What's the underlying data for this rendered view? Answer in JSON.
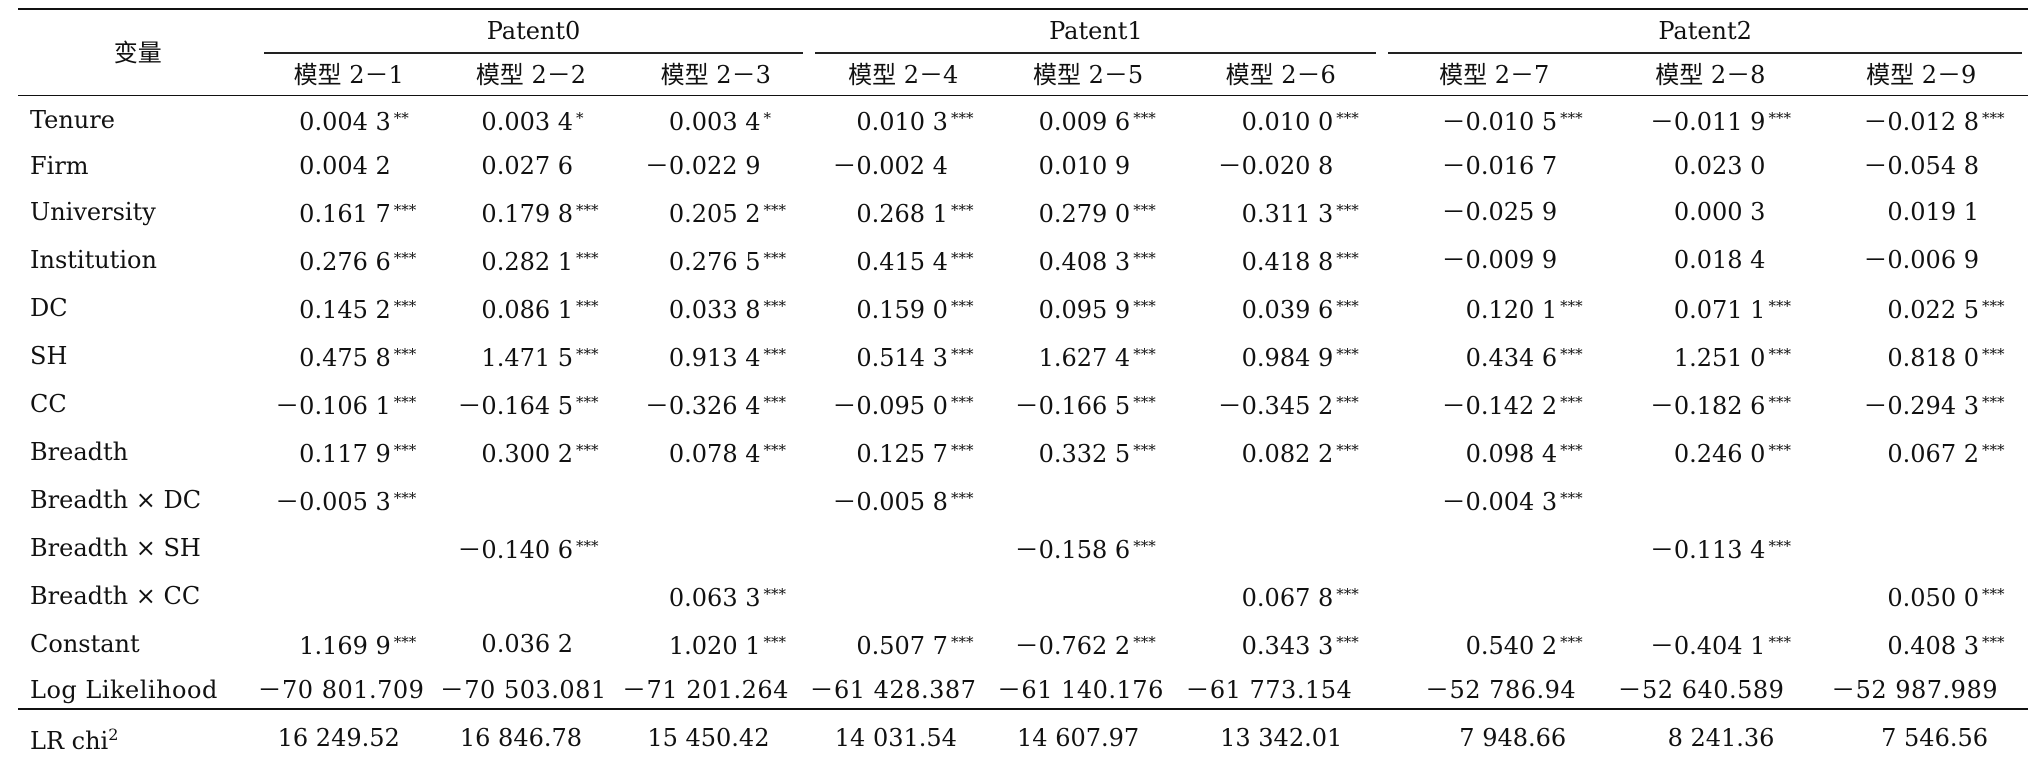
{
  "table": {
    "var_header": "变量",
    "groups": [
      "Patent0",
      "Patent1",
      "Patent2"
    ],
    "models": [
      "模型 2－1",
      "模型 2－2",
      "模型 2－3",
      "模型 2－4",
      "模型 2－5",
      "模型 2－6",
      "模型 2－7",
      "模型 2－8",
      "模型 2－9"
    ],
    "rows": [
      {
        "label": "Tenure",
        "cells": [
          [
            "0.004 3",
            "**"
          ],
          [
            "0.003 4",
            "*"
          ],
          [
            "0.003 4",
            "*"
          ],
          [
            "0.010 3",
            "***"
          ],
          [
            "0.009 6",
            "***"
          ],
          [
            "0.010 0",
            "***"
          ],
          [
            "－0.010 5",
            "***"
          ],
          [
            "－0.011 9",
            "***"
          ],
          [
            "－0.012 8",
            "***"
          ]
        ]
      },
      {
        "label": "Firm",
        "cells": [
          [
            "0.004 2",
            ""
          ],
          [
            "0.027 6",
            ""
          ],
          [
            "－0.022 9",
            ""
          ],
          [
            "－0.002 4",
            ""
          ],
          [
            "0.010 9",
            ""
          ],
          [
            "－0.020 8",
            ""
          ],
          [
            "－0.016 7",
            ""
          ],
          [
            "0.023 0",
            ""
          ],
          [
            "－0.054 8",
            ""
          ]
        ]
      },
      {
        "label": "University",
        "cells": [
          [
            "0.161 7",
            "***"
          ],
          [
            "0.179 8",
            "***"
          ],
          [
            "0.205 2",
            "***"
          ],
          [
            "0.268 1",
            "***"
          ],
          [
            "0.279 0",
            "***"
          ],
          [
            "0.311 3",
            "***"
          ],
          [
            "－0.025 9",
            ""
          ],
          [
            "0.000 3",
            ""
          ],
          [
            "0.019 1",
            ""
          ]
        ]
      },
      {
        "label": "Institution",
        "cells": [
          [
            "0.276 6",
            "***"
          ],
          [
            "0.282 1",
            "***"
          ],
          [
            "0.276 5",
            "***"
          ],
          [
            "0.415 4",
            "***"
          ],
          [
            "0.408 3",
            "***"
          ],
          [
            "0.418 8",
            "***"
          ],
          [
            "－0.009 9",
            ""
          ],
          [
            "0.018 4",
            ""
          ],
          [
            "－0.006 9",
            ""
          ]
        ]
      },
      {
        "label": "DC",
        "cells": [
          [
            "0.145 2",
            "***"
          ],
          [
            "0.086 1",
            "***"
          ],
          [
            "0.033 8",
            "***"
          ],
          [
            "0.159 0",
            "***"
          ],
          [
            "0.095 9",
            "***"
          ],
          [
            "0.039 6",
            "***"
          ],
          [
            "0.120 1",
            "***"
          ],
          [
            "0.071 1",
            "***"
          ],
          [
            "0.022 5",
            "***"
          ]
        ]
      },
      {
        "label": "SH",
        "cells": [
          [
            "0.475 8",
            "***"
          ],
          [
            "1.471 5",
            "***"
          ],
          [
            "0.913 4",
            "***"
          ],
          [
            "0.514 3",
            "***"
          ],
          [
            "1.627 4",
            "***"
          ],
          [
            "0.984 9",
            "***"
          ],
          [
            "0.434 6",
            "***"
          ],
          [
            "1.251 0",
            "***"
          ],
          [
            "0.818 0",
            "***"
          ]
        ]
      },
      {
        "label": "CC",
        "cells": [
          [
            "－0.106 1",
            "***"
          ],
          [
            "－0.164 5",
            "***"
          ],
          [
            "－0.326 4",
            "***"
          ],
          [
            "－0.095 0",
            "***"
          ],
          [
            "－0.166 5",
            "***"
          ],
          [
            "－0.345 2",
            "***"
          ],
          [
            "－0.142 2",
            "***"
          ],
          [
            "－0.182 6",
            "***"
          ],
          [
            "－0.294 3",
            "***"
          ]
        ]
      },
      {
        "label": "Breadth",
        "cells": [
          [
            "0.117 9",
            "***"
          ],
          [
            "0.300 2",
            "***"
          ],
          [
            "0.078 4",
            "***"
          ],
          [
            "0.125 7",
            "***"
          ],
          [
            "0.332 5",
            "***"
          ],
          [
            "0.082 2",
            "***"
          ],
          [
            "0.098 4",
            "***"
          ],
          [
            "0.246 0",
            "***"
          ],
          [
            "0.067 2",
            "***"
          ]
        ]
      },
      {
        "label": "Breadth × DC",
        "cells": [
          [
            "－0.005 3",
            "***"
          ],
          [
            "",
            ""
          ],
          [
            "",
            ""
          ],
          [
            "－0.005 8",
            "***"
          ],
          [
            "",
            ""
          ],
          [
            "",
            ""
          ],
          [
            "－0.004 3",
            "***"
          ],
          [
            "",
            ""
          ],
          [
            "",
            ""
          ]
        ]
      },
      {
        "label": "Breadth × SH",
        "cells": [
          [
            "",
            ""
          ],
          [
            "－0.140 6",
            "***"
          ],
          [
            "",
            ""
          ],
          [
            "",
            ""
          ],
          [
            "－0.158 6",
            "***"
          ],
          [
            "",
            ""
          ],
          [
            "",
            ""
          ],
          [
            "－0.113 4",
            "***"
          ],
          [
            "",
            ""
          ]
        ]
      },
      {
        "label": "Breadth × CC",
        "cells": [
          [
            "",
            ""
          ],
          [
            "",
            ""
          ],
          [
            "0.063 3",
            "***"
          ],
          [
            "",
            ""
          ],
          [
            "",
            ""
          ],
          [
            "0.067 8",
            "***"
          ],
          [
            "",
            ""
          ],
          [
            "",
            ""
          ],
          [
            "0.050 0",
            "***"
          ]
        ]
      },
      {
        "label": "Constant",
        "cells": [
          [
            "1.169 9",
            "***"
          ],
          [
            "0.036 2",
            ""
          ],
          [
            "1.020 1",
            "***"
          ],
          [
            "0.507 7",
            "***"
          ],
          [
            "－0.762 2",
            "***"
          ],
          [
            "0.343 3",
            "***"
          ],
          [
            "0.540 2",
            "***"
          ],
          [
            "－0.404 1",
            "***"
          ],
          [
            "0.408 3",
            "***"
          ]
        ]
      }
    ],
    "loglik": {
      "label": "Log Likelihood",
      "values": [
        "－70 801.709",
        "－70 503.081",
        "－71 201.264",
        "－61 428.387",
        "－61 140.176",
        "－61 773.154",
        "－52 786.94",
        "－52 640.589",
        "－52 987.989"
      ]
    },
    "lrchi": {
      "label": "LR chi",
      "sup": "2",
      "values": [
        "16 249.52",
        "16 846.78",
        "15 450.42",
        "14 031.54",
        "14 607.97",
        "13 342.01",
        "7 948.66",
        "8 241.36",
        "7 546.56"
      ]
    }
  }
}
